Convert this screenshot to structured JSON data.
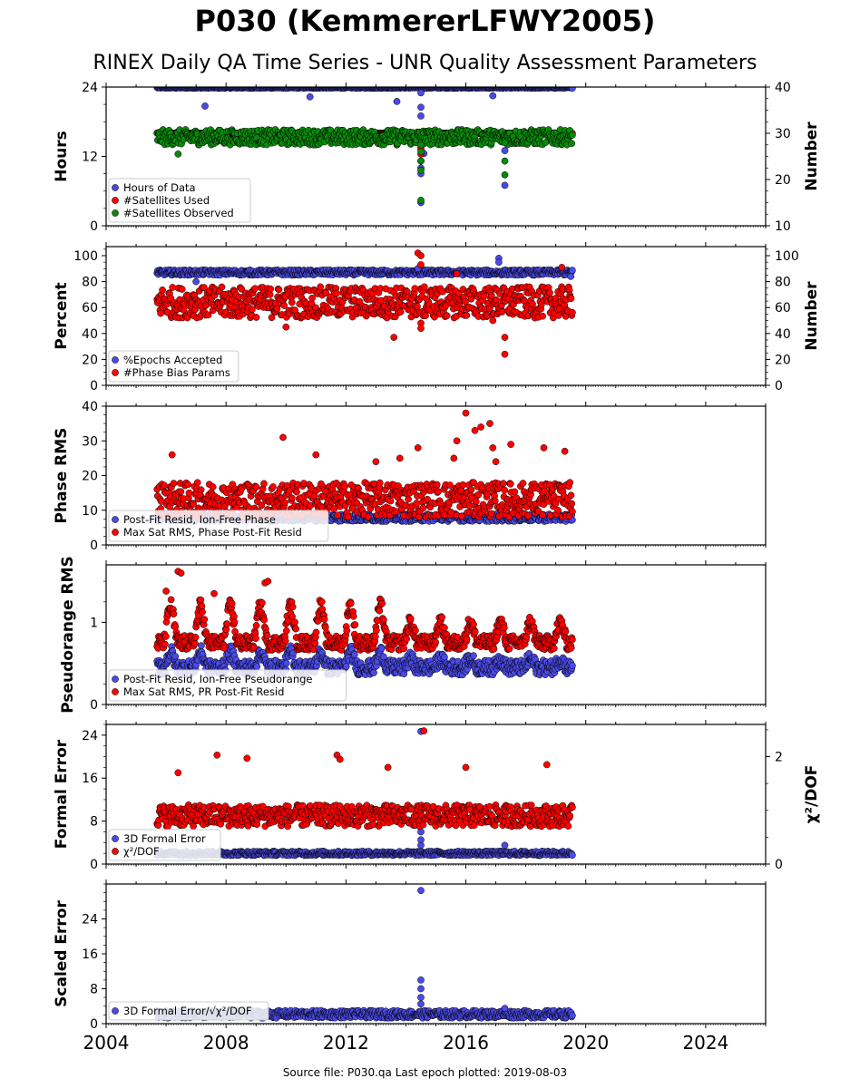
{
  "title": "P030 (KemmererLFWY2005)",
  "subtitle": "RINEX Daily QA Time Series - UNR Quality Assessment Parameters",
  "footer": "Source file: P030.qa Last epoch plotted: 2019-08-03",
  "colors": {
    "blue": "#4a4ae6",
    "red": "#ff0000",
    "green": "#0a8a0a",
    "edge": "#000000"
  },
  "chart_data": [
    {
      "type": "scatter",
      "ylabel": "Hours",
      "ylabel2": "Number",
      "xlim": [
        2004,
        2026
      ],
      "ylim": [
        0,
        24
      ],
      "ylim2": [
        10,
        40
      ],
      "yticks": [
        0,
        12,
        24
      ],
      "yticks2": [
        10,
        20,
        30,
        40
      ],
      "legend": [
        "Hours of Data",
        "#Satellites Used",
        "#Satellites Observed"
      ],
      "series": [
        {
          "name": "Hours of Data",
          "color": "blue",
          "axis": "left",
          "band": [
            2005.7,
            2019.55,
            23.8,
            24.0
          ],
          "outliers": [
            [
              2007.3,
              20.7
            ],
            [
              2010.8,
              22.3
            ],
            [
              2013.7,
              21.5
            ],
            [
              2014.5,
              23.0
            ],
            [
              2014.5,
              20.5
            ],
            [
              2014.5,
              19.0
            ],
            [
              2014.6,
              12.5
            ],
            [
              2014.5,
              10.0
            ],
            [
              2014.5,
              9.0
            ],
            [
              2014.5,
              4.0
            ],
            [
              2016.9,
              22.5
            ],
            [
              2017.3,
              13.0
            ],
            [
              2017.3,
              7.0
            ],
            [
              2013.7,
              14.0
            ]
          ]
        },
        {
          "name": "#Satellites Used",
          "color": "red",
          "axis": "right",
          "band": [
            2005.7,
            2019.55,
            30.0,
            30.0
          ],
          "outliers": [
            [
              2014.5,
              27.0
            ],
            [
              2014.5,
              26.5
            ],
            [
              2014.5,
              25.5
            ],
            [
              2014.5,
              24.0
            ]
          ]
        },
        {
          "name": "#Satellites Observed",
          "color": "green",
          "axis": "right",
          "band": [
            2005.7,
            2019.55,
            27.5,
            30.8
          ],
          "outliers": [
            [
              2006.4,
              25.5
            ],
            [
              2014.5,
              27.5
            ],
            [
              2014.5,
              26.0
            ],
            [
              2014.5,
              24.0
            ],
            [
              2014.5,
              22.0
            ],
            [
              2014.5,
              15.5
            ],
            [
              2017.3,
              28.0
            ],
            [
              2017.3,
              24.0
            ],
            [
              2017.3,
              21.0
            ]
          ]
        }
      ]
    },
    {
      "type": "scatter",
      "ylabel": "Percent",
      "ylabel2": "Number",
      "xlim": [
        2004,
        2026
      ],
      "ylim": [
        0,
        107
      ],
      "ylim2": [
        0,
        107
      ],
      "yticks": [
        0,
        20,
        40,
        60,
        80,
        100
      ],
      "yticks2": [
        0,
        20,
        40,
        60,
        80,
        100
      ],
      "legend": [
        "%Epochs Accepted",
        "#Phase Bias Params"
      ],
      "series": [
        {
          "name": "%Epochs Accepted",
          "color": "blue",
          "axis": "left",
          "band": [
            2005.7,
            2019.55,
            85.0,
            89.0
          ],
          "outliers": [
            [
              2017.1,
              98.0
            ],
            [
              2017.1,
              95.0
            ],
            [
              2014.4,
              90.0
            ],
            [
              2007.0,
              80.0
            ],
            [
              2019.5,
              84.0
            ]
          ]
        },
        {
          "name": "#Phase Bias Params",
          "color": "red",
          "axis": "right",
          "band": [
            2005.7,
            2019.55,
            52.0,
            76.0
          ],
          "outliers": [
            [
              2014.4,
              102.0
            ],
            [
              2014.5,
              100.0
            ],
            [
              2014.5,
              93.0
            ],
            [
              2014.5,
              48.0
            ],
            [
              2014.5,
              44.0
            ],
            [
              2013.6,
              37.0
            ],
            [
              2017.3,
              37.0
            ],
            [
              2017.3,
              24.0
            ],
            [
              2016.9,
              50.0
            ],
            [
              2010.0,
              45.0
            ],
            [
              2019.2,
              91.0
            ],
            [
              2015.7,
              86.0
            ]
          ]
        }
      ]
    },
    {
      "type": "scatter",
      "ylabel": "Phase RMS",
      "xlim": [
        2004,
        2026
      ],
      "ylim": [
        0,
        40
      ],
      "yticks": [
        0,
        10,
        20,
        30,
        40
      ],
      "legend": [
        "Post-Fit Resid, Ion-Free Phase",
        "Max Sat RMS, Phase Post-Fit Resid"
      ],
      "series": [
        {
          "name": "Post-Fit Resid, Ion-Free Phase",
          "color": "blue",
          "axis": "left",
          "band": [
            2005.7,
            2019.55,
            6.8,
            9.0
          ],
          "outliers": []
        },
        {
          "name": "Max Sat RMS, Phase Post-Fit Resid",
          "color": "red",
          "axis": "left",
          "band": [
            2005.7,
            2019.55,
            8.0,
            18.0
          ],
          "outliers": [
            [
              2016.0,
              38.0
            ],
            [
              2016.5,
              34.0
            ],
            [
              2016.8,
              35.0
            ],
            [
              2016.9,
              28.0
            ],
            [
              2017.5,
              29.0
            ],
            [
              2015.7,
              30.0
            ],
            [
              2016.3,
              33.0
            ],
            [
              2009.9,
              31.0
            ],
            [
              2014.4,
              28.0
            ],
            [
              2018.6,
              28.0
            ],
            [
              2019.3,
              27.0
            ],
            [
              2011.0,
              26.0
            ],
            [
              2006.2,
              26.0
            ],
            [
              2013.8,
              25.0
            ],
            [
              2017.0,
              24.0
            ],
            [
              2013.0,
              24.0
            ],
            [
              2015.6,
              25.0
            ]
          ]
        }
      ]
    },
    {
      "type": "scatter",
      "ylabel": "Pseudorange RMS",
      "xlim": [
        2004,
        2026
      ],
      "ylim": [
        0,
        1.7
      ],
      "yticks": [
        0,
        1
      ],
      "legend": [
        "Post-Fit Resid, Ion-Free Pseudorange",
        "Max Sat RMS, PR Post-Fit Resid"
      ],
      "series": [
        {
          "name": "Post-Fit Resid, Ion-Free Pseudorange",
          "color": "blue",
          "axis": "left",
          "seasonal": [
            0.45,
            0.18
          ],
          "outliers": []
        },
        {
          "name": "Max Sat RMS, PR Post-Fit Resid",
          "color": "red",
          "axis": "left",
          "seasonal": [
            0.75,
            0.45
          ],
          "outliers": [
            [
              2006.4,
              1.62
            ],
            [
              2006.5,
              1.6
            ],
            [
              2009.3,
              1.48
            ],
            [
              2009.4,
              1.5
            ],
            [
              2006.0,
              1.38
            ],
            [
              2007.6,
              1.35
            ]
          ]
        }
      ]
    },
    {
      "type": "scatter",
      "ylabel": "Formal Error",
      "ylabel2": "χ²/DOF",
      "xlim": [
        2004,
        2026
      ],
      "ylim": [
        0,
        26
      ],
      "ylim2": [
        0,
        2.6
      ],
      "yticks": [
        0,
        8,
        16,
        24
      ],
      "yticks2": [
        0,
        2
      ],
      "legend": [
        "3D Formal Error",
        "χ²/DOF"
      ],
      "series": [
        {
          "name": "3D Formal Error",
          "color": "blue",
          "axis": "left",
          "band": [
            2005.7,
            2019.55,
            1.6,
            2.4
          ],
          "outliers": [
            [
              2014.5,
              24.7
            ],
            [
              2014.5,
              6.0
            ],
            [
              2014.5,
              3.5
            ],
            [
              2014.5,
              4.5
            ],
            [
              2017.3,
              3.5
            ]
          ]
        },
        {
          "name": "χ²/DOF",
          "color": "red",
          "axis": "right",
          "band": [
            2005.7,
            2019.55,
            0.7,
            1.1
          ],
          "outliers": [
            [
              2014.6,
              2.48
            ],
            [
              2007.7,
              2.03
            ],
            [
              2008.7,
              1.97
            ],
            [
              2011.7,
              2.03
            ],
            [
              2011.8,
              1.95
            ],
            [
              2018.7,
              1.85
            ],
            [
              2016.0,
              1.8
            ],
            [
              2013.4,
              1.8
            ],
            [
              2006.4,
              1.7
            ]
          ]
        }
      ]
    },
    {
      "type": "scatter",
      "ylabel": "Scaled Error",
      "xlim": [
        2004,
        2026
      ],
      "ylim": [
        0,
        32
      ],
      "yticks": [
        0,
        8,
        16,
        24
      ],
      "xticks": [
        2004,
        2008,
        2012,
        2016,
        2020,
        2024
      ],
      "legend": [
        "3D Formal Error/√χ²/DOF"
      ],
      "series": [
        {
          "name": "3D Formal Error/√χ²/DOF",
          "color": "blue",
          "axis": "left",
          "band": [
            2005.7,
            2019.55,
            1.3,
            3.0
          ],
          "outliers": [
            [
              2014.5,
              30.5
            ],
            [
              2014.5,
              10.0
            ],
            [
              2014.5,
              8.0
            ],
            [
              2014.5,
              6.0
            ],
            [
              2014.5,
              4.5
            ],
            [
              2017.3,
              3.5
            ]
          ]
        }
      ]
    }
  ]
}
